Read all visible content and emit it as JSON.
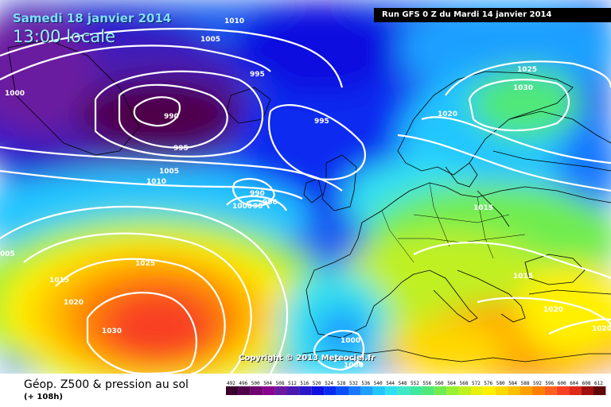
{
  "header": {
    "date_title": "Samedi 18 janvier 2014",
    "local_time": "13:00 locale",
    "run_info": "Run GFS 0 Z du Mardi 14 janvier 2014"
  },
  "copyright": "Copyright © 2013 Meteociel.fr",
  "footer": {
    "title": "Géop. Z500 & pression au sol",
    "subtitle": "(+ 108h)"
  },
  "isobars": [
    {
      "id": "p1010a",
      "label": "1010"
    },
    {
      "id": "p1005a",
      "label": "1005"
    },
    {
      "id": "p995a",
      "label": "995"
    },
    {
      "id": "p1000a",
      "label": "1000"
    },
    {
      "id": "p990a",
      "label": "990"
    },
    {
      "id": "p995b",
      "label": "995"
    },
    {
      "id": "p995c",
      "label": "995"
    },
    {
      "id": "p1005b",
      "label": "1005"
    },
    {
      "id": "p1010b",
      "label": "1010"
    },
    {
      "id": "p990b",
      "label": "990"
    },
    {
      "id": "p1000b",
      "label": "1000"
    },
    {
      "id": "p995d",
      "label": "95"
    },
    {
      "id": "p990c",
      "label": "990"
    },
    {
      "id": "p1025a",
      "label": "1025"
    },
    {
      "id": "p1030a",
      "label": "1030"
    },
    {
      "id": "p1020a",
      "label": "1020"
    },
    {
      "id": "p1015a",
      "label": "1015"
    },
    {
      "id": "p1005c",
      "label": "005"
    },
    {
      "id": "p1025b",
      "label": "1025"
    },
    {
      "id": "p1015b",
      "label": "1015"
    },
    {
      "id": "p1020b",
      "label": "1020"
    },
    {
      "id": "p1030b",
      "label": "1030"
    },
    {
      "id": "p1015c",
      "label": "1015"
    },
    {
      "id": "p1020c",
      "label": "1020"
    },
    {
      "id": "p1020d",
      "label": "1020"
    },
    {
      "id": "p1000c",
      "label": "1000"
    },
    {
      "id": "p1000d",
      "label": "1000"
    }
  ],
  "legend": {
    "values": [
      "492",
      "496",
      "500",
      "504",
      "508",
      "512",
      "516",
      "520",
      "524",
      "528",
      "532",
      "536",
      "540",
      "544",
      "548",
      "552",
      "556",
      "560",
      "564",
      "568",
      "572",
      "576",
      "580",
      "584",
      "588",
      "592",
      "596",
      "600",
      "604",
      "608",
      "612"
    ],
    "colors": [
      "#3a0030",
      "#50004a",
      "#700070",
      "#8a0090",
      "#6a1aa0",
      "#4a1ab0",
      "#2a18c8",
      "#1010e0",
      "#0a2cf0",
      "#0a50f8",
      "#1878ff",
      "#1ea0ff",
      "#22c6ff",
      "#30e0f0",
      "#40e8c8",
      "#40e8a0",
      "#50e878",
      "#70ec50",
      "#98f030",
      "#c0f020",
      "#e8f010",
      "#fff000",
      "#ffd800",
      "#ffc000",
      "#ffa000",
      "#ff8000",
      "#ff6020",
      "#f84020",
      "#e02818",
      "#a01010",
      "#600808"
    ]
  },
  "colors": {
    "isobar": "#ffffff",
    "coast": "#000000",
    "title_cyan": "#7fdfff"
  }
}
